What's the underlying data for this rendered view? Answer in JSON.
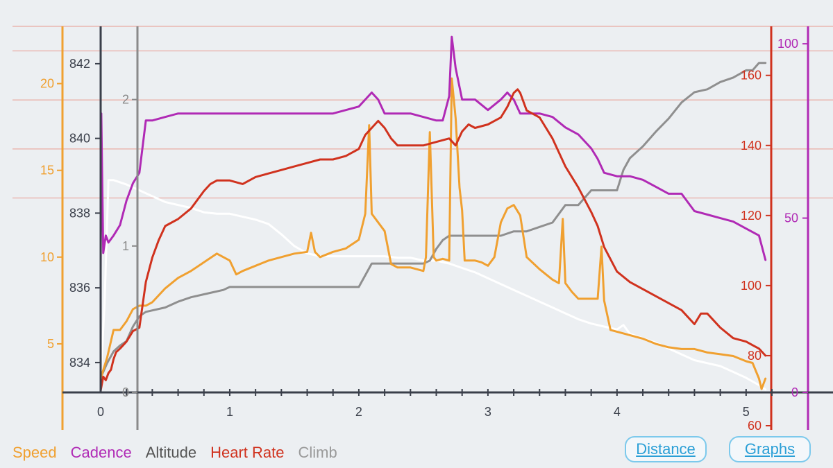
{
  "legend": {
    "items": [
      {
        "label": "Speed",
        "color": "#f0a030"
      },
      {
        "label": "Cadence",
        "color": "#b02ab5"
      },
      {
        "label": "Altitude",
        "color": "#555555"
      },
      {
        "label": "Heart Rate",
        "color": "#d0321e"
      },
      {
        "label": "Climb",
        "color": "#9a9a9a"
      }
    ]
  },
  "buttons": {
    "distance_label": "Distance",
    "graphs_label": "Graphs"
  },
  "chart_data": {
    "type": "line",
    "x_axis": {
      "range": [
        0,
        5.2
      ],
      "ticks": [
        0,
        1,
        2,
        3,
        4,
        5
      ],
      "minor_step": 0.2
    },
    "y_axes": {
      "speed": {
        "color": "#f0a030",
        "range": [
          2.2,
          23.3
        ],
        "ticks": [
          5,
          10,
          15,
          20
        ]
      },
      "altitude": {
        "color": "#3a3f4a",
        "range": [
          833.2,
          843.0
        ],
        "ticks": [
          834,
          836,
          838,
          840,
          842
        ]
      },
      "climb": {
        "color": "#8a8a8a",
        "range": [
          0,
          2.5
        ],
        "ticks": [
          0,
          1,
          2
        ]
      },
      "heartrate": {
        "color": "#d0321e",
        "range": [
          69.5,
          174
        ],
        "ticks": [
          60,
          80,
          100,
          120,
          140,
          160
        ]
      },
      "cadence": {
        "color": "#b02ab5",
        "range": [
          0,
          105
        ],
        "ticks": [
          0,
          50,
          100
        ]
      }
    },
    "gridlines_heartrate": [
      125,
      139,
      153,
      167,
      174
    ],
    "series": [
      {
        "name": "Climb",
        "axis": "climb",
        "color": "#ffffff",
        "x": [
          0,
          0.03,
          0.06,
          0.1,
          0.2,
          0.3,
          0.4,
          0.5,
          0.6,
          0.7,
          0.8,
          0.9,
          1.0,
          1.1,
          1.2,
          1.3,
          1.4,
          1.5,
          1.6,
          1.7,
          1.8,
          1.9,
          2.0,
          2.1,
          2.2,
          2.3,
          2.4,
          2.5,
          2.6,
          2.7,
          2.8,
          2.9,
          3.0,
          3.1,
          3.2,
          3.3,
          3.4,
          3.5,
          3.6,
          3.7,
          3.8,
          3.9,
          4.0,
          4.05,
          4.1,
          4.2,
          4.3,
          4.4,
          4.5,
          4.6,
          4.7,
          4.8,
          4.9,
          5.0,
          5.1,
          5.15
        ],
        "y": [
          0.1,
          0.6,
          1.45,
          1.45,
          1.42,
          1.38,
          1.34,
          1.3,
          1.28,
          1.26,
          1.23,
          1.22,
          1.22,
          1.2,
          1.18,
          1.15,
          1.08,
          1.0,
          0.95,
          0.93,
          0.93,
          0.93,
          0.93,
          0.93,
          0.93,
          0.92,
          0.92,
          0.9,
          0.9,
          0.88,
          0.85,
          0.82,
          0.78,
          0.74,
          0.7,
          0.66,
          0.62,
          0.58,
          0.54,
          0.5,
          0.47,
          0.45,
          0.43,
          0.46,
          0.4,
          0.37,
          0.34,
          0.3,
          0.26,
          0.22,
          0.2,
          0.18,
          0.14,
          0.1,
          0.05,
          0.02
        ]
      },
      {
        "name": "Altitude",
        "axis": "climb",
        "color": "#8f8f8f",
        "x": [
          0,
          0.05,
          0.1,
          0.15,
          0.2,
          0.25,
          0.3,
          0.35,
          0.5,
          0.6,
          0.7,
          0.85,
          0.95,
          1.0,
          1.5,
          2.0,
          2.05,
          2.1,
          2.3,
          2.5,
          2.55,
          2.6,
          2.65,
          2.7,
          2.8,
          2.9,
          3.0,
          3.1,
          3.2,
          3.3,
          3.4,
          3.5,
          3.6,
          3.7,
          3.8,
          3.9,
          4.0,
          4.05,
          4.1,
          4.2,
          4.3,
          4.4,
          4.5,
          4.6,
          4.7,
          4.8,
          4.9,
          5.0,
          5.05,
          5.1,
          5.15
        ],
        "y": [
          0.1,
          0.2,
          0.28,
          0.32,
          0.35,
          0.45,
          0.52,
          0.55,
          0.58,
          0.62,
          0.65,
          0.68,
          0.7,
          0.72,
          0.72,
          0.72,
          0.8,
          0.88,
          0.88,
          0.88,
          0.9,
          0.98,
          1.04,
          1.07,
          1.07,
          1.07,
          1.07,
          1.07,
          1.1,
          1.1,
          1.13,
          1.16,
          1.28,
          1.28,
          1.38,
          1.38,
          1.38,
          1.52,
          1.6,
          1.68,
          1.78,
          1.87,
          1.98,
          2.05,
          2.07,
          2.12,
          2.15,
          2.2,
          2.2,
          2.25,
          2.25
        ]
      },
      {
        "name": "Speed",
        "axis": "speed",
        "color": "#f0a030",
        "x": [
          0,
          0.05,
          0.1,
          0.15,
          0.2,
          0.25,
          0.3,
          0.35,
          0.4,
          0.5,
          0.6,
          0.7,
          0.8,
          0.9,
          0.95,
          1.0,
          1.05,
          1.1,
          1.2,
          1.3,
          1.4,
          1.5,
          1.6,
          1.63,
          1.66,
          1.7,
          1.8,
          1.9,
          2.0,
          2.05,
          2.08,
          2.1,
          2.15,
          2.2,
          2.25,
          2.3,
          2.4,
          2.5,
          2.52,
          2.55,
          2.58,
          2.6,
          2.65,
          2.7,
          2.72,
          2.75,
          2.78,
          2.8,
          2.82,
          2.85,
          2.9,
          2.95,
          3.0,
          3.05,
          3.1,
          3.15,
          3.2,
          3.25,
          3.3,
          3.4,
          3.5,
          3.55,
          3.58,
          3.6,
          3.65,
          3.7,
          3.8,
          3.85,
          3.88,
          3.9,
          3.95,
          4.0,
          4.1,
          4.2,
          4.3,
          4.4,
          4.5,
          4.6,
          4.7,
          4.8,
          4.9,
          5.0,
          5.05,
          5.1,
          5.12,
          5.15
        ],
        "y": [
          3,
          4.2,
          5.8,
          5.8,
          6.3,
          7,
          7.2,
          7.2,
          7.4,
          8.2,
          8.8,
          9.2,
          9.7,
          10.2,
          10.0,
          9.8,
          9.0,
          9.2,
          9.5,
          9.8,
          10.0,
          10.2,
          10.3,
          11.4,
          10.3,
          10.0,
          10.3,
          10.5,
          11.0,
          12.5,
          17.6,
          12.5,
          12.0,
          11.5,
          9.6,
          9.4,
          9.4,
          9.2,
          10.0,
          17.2,
          10.0,
          9.8,
          9.9,
          9.8,
          20.3,
          18.0,
          14.0,
          12.7,
          9.8,
          9.8,
          9.8,
          9.7,
          9.5,
          10.0,
          12.0,
          12.8,
          13.0,
          12.4,
          10.0,
          9.3,
          8.7,
          8.5,
          12.2,
          8.5,
          8.0,
          7.6,
          7.6,
          7.6,
          10.6,
          7.5,
          5.8,
          5.7,
          5.5,
          5.3,
          5.0,
          4.8,
          4.7,
          4.7,
          4.5,
          4.4,
          4.3,
          4.0,
          3.9,
          3.0,
          2.4,
          3.0
        ]
      },
      {
        "name": "Cadence",
        "axis": "cadence",
        "color": "#b02ab5",
        "x": [
          0,
          0.005,
          0.02,
          0.04,
          0.06,
          0.1,
          0.15,
          0.2,
          0.25,
          0.3,
          0.35,
          0.4,
          0.5,
          0.6,
          0.7,
          0.8,
          0.9,
          1.0,
          1.2,
          1.4,
          1.6,
          1.8,
          1.9,
          2.0,
          2.05,
          2.1,
          2.15,
          2.2,
          2.3,
          2.4,
          2.5,
          2.6,
          2.65,
          2.7,
          2.72,
          2.75,
          2.8,
          2.9,
          3.0,
          3.1,
          3.15,
          3.2,
          3.25,
          3.3,
          3.4,
          3.5,
          3.6,
          3.7,
          3.8,
          3.85,
          3.9,
          4.0,
          4.1,
          4.2,
          4.3,
          4.4,
          4.5,
          4.6,
          4.7,
          4.8,
          4.9,
          5.0,
          5.05,
          5.1,
          5.15
        ],
        "y": [
          35,
          80,
          40,
          45,
          43,
          45,
          48,
          55,
          60,
          63,
          78,
          78,
          79,
          80,
          80,
          80,
          80,
          80,
          80,
          80,
          80,
          80,
          81,
          82,
          84,
          86,
          84,
          80,
          80,
          80,
          79,
          78,
          78,
          85,
          102,
          93,
          84,
          84,
          81,
          84,
          86,
          84,
          80,
          80,
          80,
          79,
          76,
          74,
          70,
          67,
          63,
          62,
          62,
          61,
          59,
          57,
          57,
          52,
          51,
          50,
          49,
          47,
          46,
          45,
          38
        ]
      },
      {
        "name": "Heart Rate",
        "axis": "heartrate",
        "color": "#d0321e",
        "x": [
          0,
          0.02,
          0.04,
          0.06,
          0.08,
          0.1,
          0.12,
          0.15,
          0.2,
          0.25,
          0.3,
          0.35,
          0.4,
          0.45,
          0.5,
          0.6,
          0.7,
          0.8,
          0.85,
          0.9,
          1.0,
          1.1,
          1.2,
          1.3,
          1.4,
          1.5,
          1.6,
          1.7,
          1.8,
          1.9,
          2.0,
          2.05,
          2.1,
          2.15,
          2.2,
          2.25,
          2.3,
          2.4,
          2.5,
          2.6,
          2.7,
          2.75,
          2.8,
          2.85,
          2.9,
          3.0,
          3.05,
          3.1,
          3.15,
          3.2,
          3.23,
          3.25,
          3.3,
          3.4,
          3.5,
          3.6,
          3.7,
          3.8,
          3.85,
          3.9,
          4.0,
          4.1,
          4.2,
          4.3,
          4.4,
          4.5,
          4.6,
          4.65,
          4.7,
          4.8,
          4.9,
          5.0,
          5.05,
          5.1,
          5.15
        ],
        "y": [
          70,
          74,
          73,
          75,
          76,
          79,
          81,
          82,
          84,
          87,
          88,
          101,
          108,
          113,
          117,
          119,
          122,
          127,
          129,
          130,
          130,
          129,
          131,
          132,
          133,
          134,
          135,
          136,
          136,
          137,
          139,
          143,
          145,
          147,
          145,
          142,
          140,
          140,
          140,
          141,
          142,
          140,
          144,
          146,
          145,
          146,
          147,
          148,
          151,
          155,
          156,
          155,
          150,
          148,
          142,
          134,
          128,
          121,
          117,
          111,
          104,
          101,
          99,
          97,
          95,
          93,
          89,
          92,
          92,
          88,
          85,
          84,
          83,
          82,
          80
        ]
      }
    ]
  }
}
